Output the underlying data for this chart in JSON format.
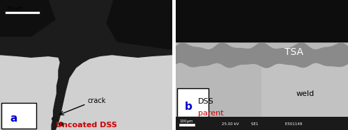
{
  "fig_width": 4.99,
  "fig_height": 1.87,
  "dpi": 100,
  "panel_a": {
    "label": "a",
    "caption": "Uncoated DSS",
    "caption_color": "#cc0000",
    "scalebar_text": "50 μm",
    "crack_label": "crack",
    "bg_color": "#d0d0d0"
  },
  "panel_b": {
    "label": "b",
    "tsa_label": "TSA",
    "tsa_color": "#ffffff",
    "dss_label": "DSS",
    "dss_color": "#000000",
    "parent_label": "parent",
    "parent_color": "#cc0000",
    "weld_label": "weld",
    "weld_color": "#000000",
    "scalebar_text": "100μm",
    "footer_text": "25.00 kV          SE1                      E501149",
    "bg_top": "#0d0d0d",
    "bg_tsa": "#8a8a8a",
    "bg_dss": "#b8b8b8",
    "bg_weld": "#c2c2c2",
    "footer_color": "#1a1a1a"
  }
}
